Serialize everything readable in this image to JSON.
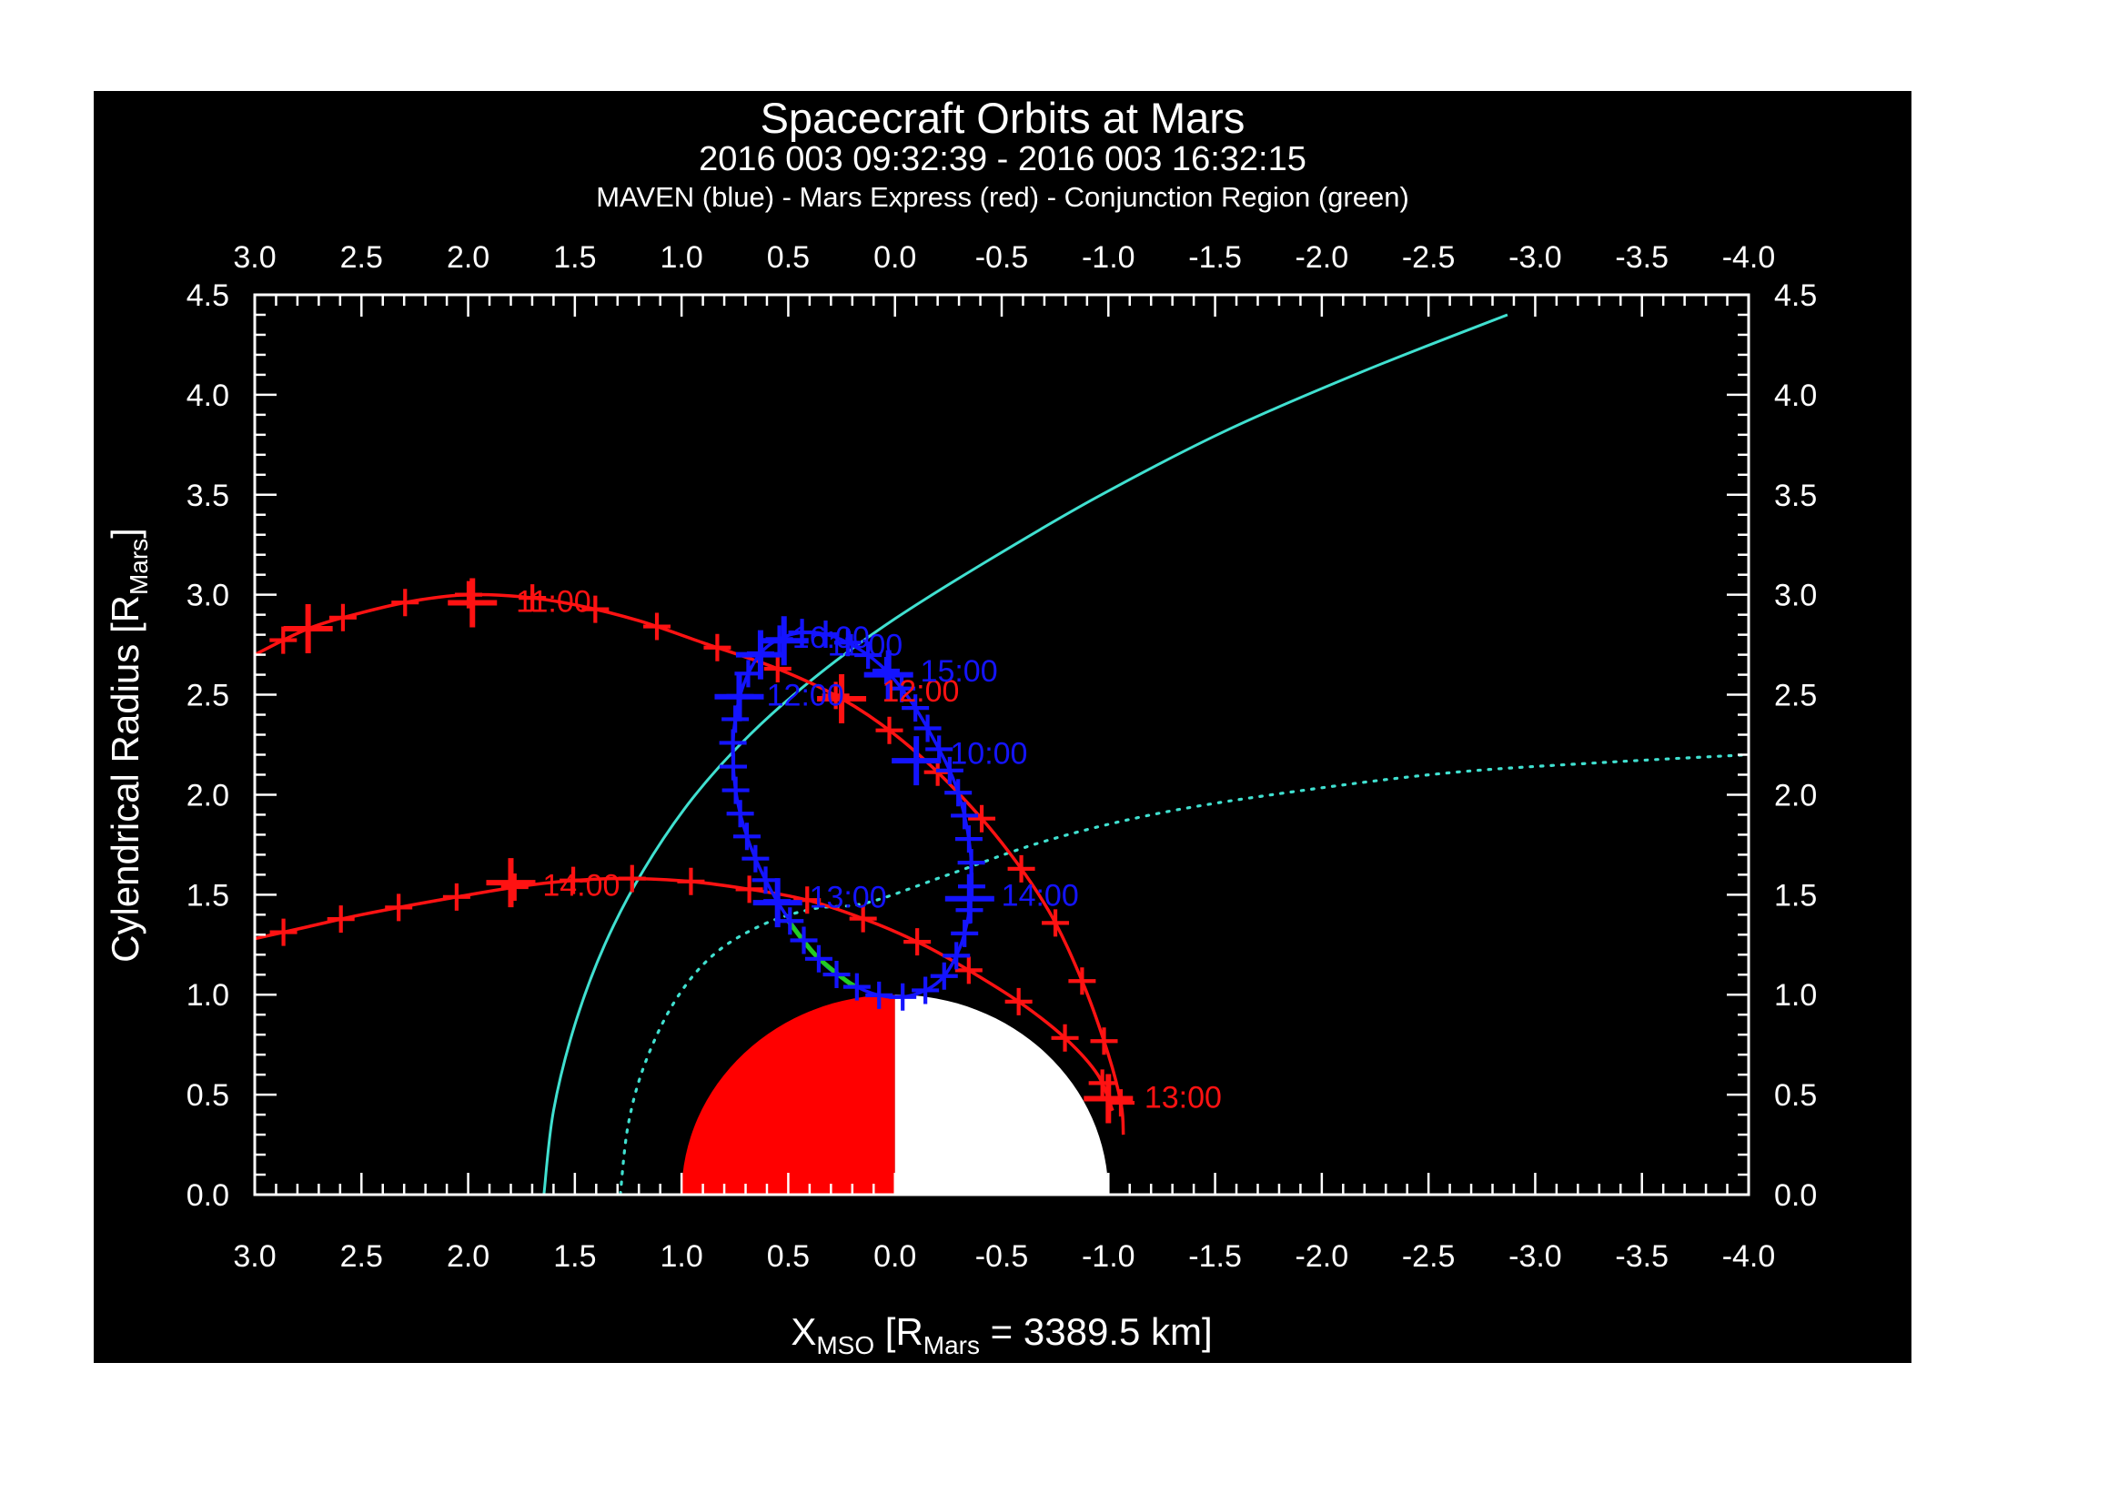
{
  "header": {
    "title": "Spacecraft Orbits at Mars",
    "subtitle": "2016 003 09:32:39 - 2016 003 16:32:15",
    "legend_line": "MAVEN (blue) - Mars Express (red) - Conjunction Region (green)"
  },
  "colors": {
    "background": "#ffffff",
    "panel": "#000000",
    "frame": "#ffffff",
    "text": "#ffffff",
    "maven_blue": "#1414ff",
    "mex_red": "#ff1212",
    "boundary_cyan": "#40e0d0",
    "conjunction_green": "#22cc22",
    "mars_dayside": "#ff0000",
    "mars_nightside": "#ffffff"
  },
  "chart_data": {
    "type": "line",
    "title": "Spacecraft Orbits at Mars",
    "x_axis": {
      "label_parts": [
        {
          "t": "X"
        },
        {
          "t": "MSO",
          "sub": true
        },
        {
          "t": " [R"
        },
        {
          "t": "Mars",
          "sub": true
        },
        {
          "t": " = 3389.5 km]"
        }
      ],
      "range": [
        3.0,
        -4.0
      ],
      "major_ticks": [
        3.0,
        2.5,
        2.0,
        1.5,
        1.0,
        0.5,
        0.0,
        -0.5,
        -1.0,
        -1.5,
        -2.0,
        -2.5,
        -3.0,
        -3.5,
        -4.0
      ],
      "major_tick_labels": [
        "3.0",
        "2.5",
        "2.0",
        "1.5",
        "1.0",
        "0.5",
        "0.0",
        "-0.5",
        "-1.0",
        "-1.5",
        "-2.0",
        "-2.5",
        "-3.0",
        "-3.5",
        "-4.0"
      ],
      "minor_step": 0.1,
      "reversed": true
    },
    "y_axis": {
      "label_parts": [
        {
          "t": "Cylendrical Radius [R"
        },
        {
          "t": "Mars",
          "sub": true
        },
        {
          "t": "]"
        }
      ],
      "range": [
        0.0,
        4.5
      ],
      "major_ticks": [
        0.0,
        0.5,
        1.0,
        1.5,
        2.0,
        2.5,
        3.0,
        3.5,
        4.0,
        4.5
      ],
      "major_tick_labels": [
        "0.0",
        "0.5",
        "1.0",
        "1.5",
        "2.0",
        "2.5",
        "3.0",
        "3.5",
        "4.0",
        "4.5"
      ],
      "minor_step": 0.1
    },
    "mars": {
      "radius": 1.0,
      "dayside_x_range": [
        0,
        1
      ],
      "nightside_x_range": [
        -1,
        0
      ]
    },
    "series": [
      {
        "name": "bow-shock",
        "color_key": "boundary_cyan",
        "style": "solid",
        "width": 3,
        "marker_count": 0,
        "points": [
          [
            1.645,
            0.0
          ],
          [
            1.6,
            0.42
          ],
          [
            1.5,
            0.85
          ],
          [
            1.36,
            1.25
          ],
          [
            1.18,
            1.62
          ],
          [
            0.95,
            1.98
          ],
          [
            0.68,
            2.3
          ],
          [
            0.36,
            2.6
          ],
          [
            0.0,
            2.88
          ],
          [
            -0.45,
            3.18
          ],
          [
            -0.95,
            3.49
          ],
          [
            -1.55,
            3.82
          ],
          [
            -2.2,
            4.12
          ],
          [
            -2.87,
            4.4
          ]
        ]
      },
      {
        "name": "magnetic-pileup-boundary",
        "color_key": "boundary_cyan",
        "style": "dotted",
        "width": 3.2,
        "marker_count": 0,
        "points": [
          [
            1.287,
            0.0
          ],
          [
            1.25,
            0.35
          ],
          [
            1.17,
            0.66
          ],
          [
            1.03,
            0.97
          ],
          [
            0.85,
            1.2
          ],
          [
            0.62,
            1.35
          ],
          [
            0.38,
            1.43
          ],
          [
            0.13,
            1.46
          ],
          [
            -0.25,
            1.6
          ],
          [
            -0.71,
            1.77
          ],
          [
            -1.25,
            1.91
          ],
          [
            -1.9,
            2.02
          ],
          [
            -2.6,
            2.11
          ],
          [
            -3.3,
            2.16
          ],
          [
            -4.0,
            2.2
          ]
        ]
      },
      {
        "name": "mars-express-inbound",
        "color_key": "mex_red",
        "style": "solid",
        "width": 3.5,
        "marker_count": 18,
        "points": [
          [
            3.0,
            2.7
          ],
          [
            2.75,
            2.83
          ],
          [
            2.5,
            2.91
          ],
          [
            2.25,
            2.97
          ],
          [
            2.0,
            3.0
          ],
          [
            1.75,
            2.99
          ],
          [
            1.5,
            2.95
          ],
          [
            1.2,
            2.87
          ],
          [
            0.9,
            2.76
          ],
          [
            0.55,
            2.63
          ],
          [
            0.25,
            2.48
          ],
          [
            0.0,
            2.3
          ],
          [
            -0.25,
            2.06
          ],
          [
            -0.5,
            1.76
          ],
          [
            -0.72,
            1.42
          ],
          [
            -0.88,
            1.06
          ],
          [
            -1.0,
            0.7
          ],
          [
            -1.06,
            0.45
          ],
          [
            -1.07,
            0.3
          ]
        ]
      },
      {
        "name": "mars-express-outbound",
        "color_key": "mex_red",
        "style": "solid",
        "width": 3.5,
        "marker_count": 16,
        "points": [
          [
            -1.02,
            0.42
          ],
          [
            -0.95,
            0.6
          ],
          [
            -0.8,
            0.78
          ],
          [
            -0.6,
            0.95
          ],
          [
            -0.38,
            1.1
          ],
          [
            -0.15,
            1.24
          ],
          [
            0.1,
            1.36
          ],
          [
            0.4,
            1.47
          ],
          [
            0.7,
            1.53
          ],
          [
            1.0,
            1.57
          ],
          [
            1.35,
            1.58
          ],
          [
            1.7,
            1.55
          ],
          [
            2.1,
            1.48
          ],
          [
            2.5,
            1.4
          ],
          [
            2.75,
            1.34
          ],
          [
            3.0,
            1.28
          ]
        ]
      },
      {
        "name": "maven-orbit",
        "color_key": "maven_blue",
        "style": "solid",
        "width": 3.5,
        "closed": true,
        "marker_count": 40,
        "points": [
          [
            0.49,
            2.8
          ],
          [
            0.61,
            2.73
          ],
          [
            0.69,
            2.6
          ],
          [
            0.74,
            2.43
          ],
          [
            0.76,
            2.22
          ],
          [
            0.74,
            1.98
          ],
          [
            0.68,
            1.75
          ],
          [
            0.58,
            1.52
          ],
          [
            0.46,
            1.32
          ],
          [
            0.33,
            1.15
          ],
          [
            0.18,
            1.04
          ],
          [
            0.04,
            0.99
          ],
          [
            -0.09,
            1.0
          ],
          [
            -0.21,
            1.07
          ],
          [
            -0.29,
            1.2
          ],
          [
            -0.34,
            1.37
          ],
          [
            -0.36,
            1.58
          ],
          [
            -0.34,
            1.82
          ],
          [
            -0.28,
            2.06
          ],
          [
            -0.18,
            2.28
          ],
          [
            -0.06,
            2.49
          ],
          [
            0.07,
            2.65
          ],
          [
            0.22,
            2.76
          ],
          [
            0.36,
            2.81
          ]
        ]
      },
      {
        "name": "conjunction-region",
        "color_key": "conjunction_green",
        "style": "solid",
        "width": 5,
        "marker_count": 0,
        "points": [
          [
            0.506,
            1.378
          ],
          [
            0.375,
            1.201
          ],
          [
            0.231,
            1.072
          ],
          [
            0.183,
            1.041
          ]
        ]
      }
    ],
    "hour_markers": [
      {
        "spacecraft": "mars-express",
        "color_key": "mex_red",
        "x": 2.75,
        "y": 2.83
      },
      {
        "spacecraft": "mars-express",
        "color_key": "mex_red",
        "x": 1.98,
        "y": 2.96
      },
      {
        "spacecraft": "mars-express",
        "color_key": "mex_red",
        "x": 0.25,
        "y": 2.48
      },
      {
        "spacecraft": "mars-express",
        "color_key": "mex_red",
        "x": -1.0,
        "y": 0.48
      },
      {
        "spacecraft": "mars-express",
        "color_key": "mex_red",
        "x": 1.8,
        "y": 1.56
      },
      {
        "spacecraft": "maven",
        "color_key": "maven_blue",
        "x": 0.52,
        "y": 2.77
      },
      {
        "spacecraft": "maven",
        "color_key": "maven_blue",
        "x": 0.63,
        "y": 2.7
      },
      {
        "spacecraft": "maven",
        "color_key": "maven_blue",
        "x": 0.73,
        "y": 2.49
      },
      {
        "spacecraft": "maven",
        "color_key": "maven_blue",
        "x": 0.55,
        "y": 1.46
      },
      {
        "spacecraft": "maven",
        "color_key": "maven_blue",
        "x": -0.35,
        "y": 1.48
      },
      {
        "spacecraft": "maven",
        "color_key": "maven_blue",
        "x": 0.03,
        "y": 2.6
      },
      {
        "spacecraft": "maven",
        "color_key": "maven_blue",
        "x": -0.1,
        "y": 2.17
      }
    ],
    "time_labels": [
      {
        "spacecraft": "mars-express",
        "color_key": "mex_red",
        "text": "11:00",
        "x": 1.6,
        "y": 2.97
      },
      {
        "spacecraft": "mars-express",
        "color_key": "mex_red",
        "text": "12:00",
        "x": -0.12,
        "y": 2.52
      },
      {
        "spacecraft": "mars-express",
        "color_key": "mex_red",
        "text": "13:00",
        "x": -1.35,
        "y": 0.49
      },
      {
        "spacecraft": "mars-express",
        "color_key": "mex_red",
        "text": "14:00",
        "x": 1.47,
        "y": 1.55
      },
      {
        "spacecraft": "maven",
        "color_key": "maven_blue",
        "text": "16:00",
        "x": 0.3,
        "y": 2.79
      },
      {
        "spacecraft": "maven",
        "color_key": "maven_blue",
        "text": "11:00",
        "x": 0.14,
        "y": 2.75
      },
      {
        "spacecraft": "maven",
        "color_key": "maven_blue",
        "text": "15:00",
        "x": -0.3,
        "y": 2.62
      },
      {
        "spacecraft": "maven",
        "color_key": "maven_blue",
        "text": "12:00",
        "x": 0.42,
        "y": 2.5
      },
      {
        "spacecraft": "maven",
        "color_key": "maven_blue",
        "text": "10:00",
        "x": -0.44,
        "y": 2.21
      },
      {
        "spacecraft": "maven",
        "color_key": "maven_blue",
        "text": "13:00",
        "x": 0.22,
        "y": 1.49
      },
      {
        "spacecraft": "maven",
        "color_key": "maven_blue",
        "text": "14:00",
        "x": -0.68,
        "y": 1.5
      }
    ]
  }
}
